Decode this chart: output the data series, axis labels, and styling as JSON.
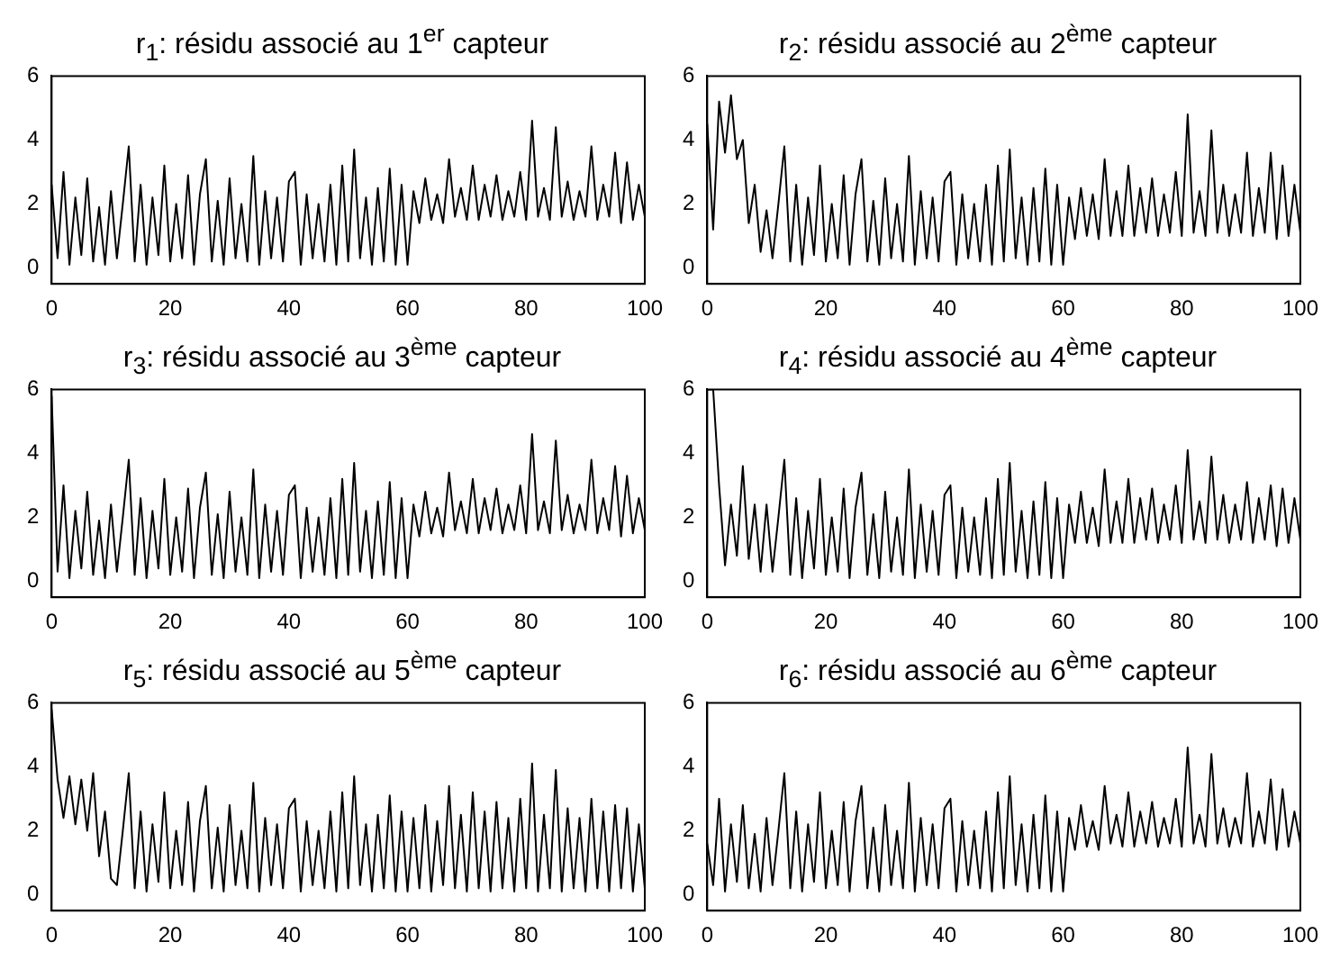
{
  "chart_data": [
    {
      "type": "line",
      "title": "r$_{1}$: résidu associé au 1$^{er}$ capteur",
      "color": "#000000",
      "xlim": [
        0,
        100
      ],
      "xticks": [
        0,
        20,
        40,
        60,
        80,
        100
      ],
      "ylim": [
        -0.5,
        6
      ],
      "yticks": [
        0,
        2,
        4,
        6
      ],
      "x": [
        0,
        1,
        2,
        3,
        4,
        5,
        6,
        7,
        8,
        9,
        10,
        11,
        12,
        13,
        14,
        15,
        16,
        17,
        18,
        19,
        20,
        21,
        22,
        23,
        24,
        25,
        26,
        27,
        28,
        29,
        30,
        31,
        32,
        33,
        34,
        35,
        36,
        37,
        38,
        39,
        40,
        41,
        42,
        43,
        44,
        45,
        46,
        47,
        48,
        49,
        50,
        51,
        52,
        53,
        54,
        55,
        56,
        57,
        58,
        59,
        60,
        61,
        62,
        63,
        64,
        65,
        66,
        67,
        68,
        69,
        70,
        71,
        72,
        73,
        74,
        75,
        76,
        77,
        78,
        79,
        80,
        81,
        82,
        83,
        84,
        85,
        86,
        87,
        88,
        89,
        90,
        91,
        92,
        93,
        94,
        95,
        96,
        97,
        98,
        99,
        100
      ],
      "values": [
        2.6,
        0.3,
        3.0,
        0.1,
        2.2,
        0.4,
        2.8,
        0.2,
        1.9,
        0.1,
        2.4,
        0.3,
        2.0,
        3.8,
        0.2,
        2.6,
        0.1,
        2.2,
        0.4,
        3.2,
        0.2,
        2.0,
        0.3,
        2.9,
        0.1,
        2.3,
        3.4,
        0.2,
        2.1,
        0.1,
        2.8,
        0.3,
        2.0,
        0.2,
        3.5,
        0.1,
        2.4,
        0.3,
        2.2,
        0.2,
        2.7,
        3.0,
        0.1,
        2.3,
        0.3,
        2.0,
        0.2,
        2.6,
        0.1,
        3.2,
        0.2,
        3.7,
        0.3,
        2.2,
        0.1,
        2.5,
        0.2,
        3.1,
        0.1,
        2.6,
        0.1,
        2.4,
        1.4,
        2.8,
        1.5,
        2.3,
        1.4,
        3.4,
        1.6,
        2.5,
        1.5,
        3.2,
        1.5,
        2.6,
        1.6,
        2.9,
        1.5,
        2.4,
        1.6,
        3.0,
        1.5,
        4.6,
        1.6,
        2.5,
        1.5,
        4.4,
        1.6,
        2.7,
        1.5,
        2.4,
        1.6,
        3.8,
        1.5,
        2.6,
        1.6,
        3.6,
        1.4,
        3.3,
        1.5,
        2.6,
        1.6
      ]
    },
    {
      "type": "line",
      "title": "r$_{2}$: résidu associé au 2$^{ème}$ capteur",
      "color": "#000000",
      "xlim": [
        0,
        100
      ],
      "xticks": [
        0,
        20,
        40,
        60,
        80,
        100
      ],
      "ylim": [
        -0.5,
        6
      ],
      "yticks": [
        0,
        2,
        4,
        6
      ],
      "x": [
        0,
        1,
        2,
        3,
        4,
        5,
        6,
        7,
        8,
        9,
        10,
        11,
        12,
        13,
        14,
        15,
        16,
        17,
        18,
        19,
        20,
        21,
        22,
        23,
        24,
        25,
        26,
        27,
        28,
        29,
        30,
        31,
        32,
        33,
        34,
        35,
        36,
        37,
        38,
        39,
        40,
        41,
        42,
        43,
        44,
        45,
        46,
        47,
        48,
        49,
        50,
        51,
        52,
        53,
        54,
        55,
        56,
        57,
        58,
        59,
        60,
        61,
        62,
        63,
        64,
        65,
        66,
        67,
        68,
        69,
        70,
        71,
        72,
        73,
        74,
        75,
        76,
        77,
        78,
        79,
        80,
        81,
        82,
        83,
        84,
        85,
        86,
        87,
        88,
        89,
        90,
        91,
        92,
        93,
        94,
        95,
        96,
        97,
        98,
        99,
        100
      ],
      "values": [
        4.5,
        1.2,
        5.2,
        3.6,
        5.4,
        3.4,
        4.0,
        1.4,
        2.6,
        0.5,
        1.8,
        0.3,
        2.0,
        3.8,
        0.2,
        2.6,
        0.1,
        2.2,
        0.4,
        3.2,
        0.2,
        2.0,
        0.3,
        2.9,
        0.1,
        2.3,
        3.4,
        0.2,
        2.1,
        0.1,
        2.8,
        0.3,
        2.0,
        0.2,
        3.5,
        0.1,
        2.4,
        0.3,
        2.2,
        0.2,
        2.7,
        3.0,
        0.1,
        2.3,
        0.3,
        2.0,
        0.2,
        2.6,
        0.1,
        3.2,
        0.2,
        3.7,
        0.3,
        2.2,
        0.1,
        2.5,
        0.2,
        3.1,
        0.1,
        2.6,
        0.1,
        2.2,
        0.9,
        2.5,
        1.0,
        2.3,
        0.9,
        3.4,
        1.0,
        2.4,
        1.0,
        3.2,
        1.0,
        2.5,
        1.1,
        2.8,
        1.0,
        2.3,
        1.1,
        3.0,
        1.0,
        4.8,
        1.1,
        2.4,
        1.0,
        4.3,
        1.1,
        2.6,
        1.0,
        2.3,
        1.1,
        3.6,
        1.0,
        2.5,
        1.1,
        3.6,
        0.9,
        3.2,
        1.0,
        2.6,
        1.1
      ]
    },
    {
      "type": "line",
      "title": "r$_{3}$: résidu associé au 3$^{ème}$ capteur",
      "color": "#000000",
      "xlim": [
        0,
        100
      ],
      "xticks": [
        0,
        20,
        40,
        60,
        80,
        100
      ],
      "ylim": [
        -0.5,
        6
      ],
      "yticks": [
        0,
        2,
        4,
        6
      ],
      "x": [
        0,
        1,
        2,
        3,
        4,
        5,
        6,
        7,
        8,
        9,
        10,
        11,
        12,
        13,
        14,
        15,
        16,
        17,
        18,
        19,
        20,
        21,
        22,
        23,
        24,
        25,
        26,
        27,
        28,
        29,
        30,
        31,
        32,
        33,
        34,
        35,
        36,
        37,
        38,
        39,
        40,
        41,
        42,
        43,
        44,
        45,
        46,
        47,
        48,
        49,
        50,
        51,
        52,
        53,
        54,
        55,
        56,
        57,
        58,
        59,
        60,
        61,
        62,
        63,
        64,
        65,
        66,
        67,
        68,
        69,
        70,
        71,
        72,
        73,
        74,
        75,
        76,
        77,
        78,
        79,
        80,
        81,
        82,
        83,
        84,
        85,
        86,
        87,
        88,
        89,
        90,
        91,
        92,
        93,
        94,
        95,
        96,
        97,
        98,
        99,
        100
      ],
      "values": [
        5.8,
        0.3,
        3.0,
        0.1,
        2.2,
        0.4,
        2.8,
        0.2,
        1.9,
        0.1,
        2.4,
        0.3,
        2.0,
        3.8,
        0.2,
        2.6,
        0.1,
        2.2,
        0.4,
        3.2,
        0.2,
        2.0,
        0.3,
        2.9,
        0.1,
        2.3,
        3.4,
        0.2,
        2.1,
        0.1,
        2.8,
        0.3,
        2.0,
        0.2,
        3.5,
        0.1,
        2.4,
        0.3,
        2.2,
        0.2,
        2.7,
        3.0,
        0.1,
        2.3,
        0.3,
        2.0,
        0.2,
        2.6,
        0.1,
        3.2,
        0.2,
        3.7,
        0.3,
        2.2,
        0.1,
        2.5,
        0.2,
        3.1,
        0.1,
        2.6,
        0.1,
        2.4,
        1.4,
        2.8,
        1.5,
        2.3,
        1.4,
        3.4,
        1.6,
        2.5,
        1.5,
        3.2,
        1.5,
        2.6,
        1.6,
        2.9,
        1.5,
        2.4,
        1.6,
        3.0,
        1.5,
        4.6,
        1.6,
        2.5,
        1.5,
        4.4,
        1.6,
        2.7,
        1.5,
        2.4,
        1.6,
        3.8,
        1.5,
        2.6,
        1.6,
        3.6,
        1.4,
        3.3,
        1.5,
        2.6,
        1.6
      ]
    },
    {
      "type": "line",
      "title": "r$_{4}$: résidu associé au 4$^{ème}$ capteur",
      "color": "#000000",
      "xlim": [
        0,
        100
      ],
      "xticks": [
        0,
        20,
        40,
        60,
        80,
        100
      ],
      "ylim": [
        -0.5,
        6
      ],
      "yticks": [
        0,
        2,
        4,
        6
      ],
      "x": [
        0,
        1,
        2,
        3,
        4,
        5,
        6,
        7,
        8,
        9,
        10,
        11,
        12,
        13,
        14,
        15,
        16,
        17,
        18,
        19,
        20,
        21,
        22,
        23,
        24,
        25,
        26,
        27,
        28,
        29,
        30,
        31,
        32,
        33,
        34,
        35,
        36,
        37,
        38,
        39,
        40,
        41,
        42,
        43,
        44,
        45,
        46,
        47,
        48,
        49,
        50,
        51,
        52,
        53,
        54,
        55,
        56,
        57,
        58,
        59,
        60,
        61,
        62,
        63,
        64,
        65,
        66,
        67,
        68,
        69,
        70,
        71,
        72,
        73,
        74,
        75,
        76,
        77,
        78,
        79,
        80,
        81,
        82,
        83,
        84,
        85,
        86,
        87,
        88,
        89,
        90,
        91,
        92,
        93,
        94,
        95,
        96,
        97,
        98,
        99,
        100
      ],
      "values": [
        6.0,
        6.0,
        3.0,
        0.5,
        2.4,
        0.8,
        3.6,
        0.7,
        2.4,
        0.3,
        2.4,
        0.3,
        2.0,
        3.8,
        0.2,
        2.6,
        0.1,
        2.2,
        0.4,
        3.2,
        0.2,
        2.0,
        0.3,
        2.9,
        0.1,
        2.3,
        3.4,
        0.2,
        2.1,
        0.1,
        2.8,
        0.3,
        2.0,
        0.2,
        3.5,
        0.1,
        2.4,
        0.3,
        2.2,
        0.2,
        2.7,
        3.0,
        0.1,
        2.3,
        0.3,
        2.0,
        0.2,
        2.6,
        0.1,
        3.2,
        0.2,
        3.7,
        0.3,
        2.2,
        0.1,
        2.5,
        0.2,
        3.1,
        0.1,
        2.6,
        0.1,
        2.4,
        1.2,
        2.8,
        1.2,
        2.3,
        1.1,
        3.5,
        1.2,
        2.5,
        1.2,
        3.2,
        1.2,
        2.6,
        1.3,
        2.9,
        1.2,
        2.4,
        1.3,
        3.0,
        1.2,
        4.1,
        1.3,
        2.5,
        1.2,
        3.9,
        1.3,
        2.7,
        1.2,
        2.4,
        1.3,
        3.1,
        1.2,
        2.6,
        1.3,
        3.0,
        1.1,
        2.9,
        1.2,
        2.6,
        1.3
      ]
    },
    {
      "type": "line",
      "title": "r$_{5}$: résidu associé au 5$^{ème}$ capteur",
      "color": "#000000",
      "xlim": [
        0,
        100
      ],
      "xticks": [
        0,
        20,
        40,
        60,
        80,
        100
      ],
      "ylim": [
        -0.5,
        6
      ],
      "yticks": [
        0,
        2,
        4,
        6
      ],
      "x": [
        0,
        1,
        2,
        3,
        4,
        5,
        6,
        7,
        8,
        9,
        10,
        11,
        12,
        13,
        14,
        15,
        16,
        17,
        18,
        19,
        20,
        21,
        22,
        23,
        24,
        25,
        26,
        27,
        28,
        29,
        30,
        31,
        32,
        33,
        34,
        35,
        36,
        37,
        38,
        39,
        40,
        41,
        42,
        43,
        44,
        45,
        46,
        47,
        48,
        49,
        50,
        51,
        52,
        53,
        54,
        55,
        56,
        57,
        58,
        59,
        60,
        61,
        62,
        63,
        64,
        65,
        66,
        67,
        68,
        69,
        70,
        71,
        72,
        73,
        74,
        75,
        76,
        77,
        78,
        79,
        80,
        81,
        82,
        83,
        84,
        85,
        86,
        87,
        88,
        89,
        90,
        91,
        92,
        93,
        94,
        95,
        96,
        97,
        98,
        99,
        100
      ],
      "values": [
        5.8,
        3.6,
        2.4,
        3.7,
        2.2,
        3.6,
        2.0,
        3.8,
        1.2,
        2.6,
        0.5,
        0.3,
        2.0,
        3.8,
        0.2,
        2.6,
        0.1,
        2.2,
        0.4,
        3.2,
        0.2,
        2.0,
        0.3,
        2.9,
        0.1,
        2.3,
        3.4,
        0.2,
        2.1,
        0.1,
        2.8,
        0.3,
        2.0,
        0.2,
        3.5,
        0.1,
        2.4,
        0.3,
        2.2,
        0.2,
        2.7,
        3.0,
        0.1,
        2.3,
        0.3,
        2.0,
        0.2,
        2.6,
        0.1,
        3.2,
        0.2,
        3.7,
        0.3,
        2.2,
        0.1,
        2.5,
        0.2,
        3.1,
        0.1,
        2.6,
        0.1,
        2.4,
        0.2,
        2.8,
        0.1,
        2.3,
        0.3,
        3.4,
        0.2,
        2.5,
        0.1,
        3.2,
        0.2,
        2.6,
        0.1,
        2.9,
        0.2,
        2.4,
        0.1,
        3.0,
        0.2,
        4.1,
        0.1,
        2.5,
        0.2,
        3.9,
        0.1,
        2.7,
        0.2,
        2.4,
        0.1,
        3.0,
        0.2,
        2.6,
        0.1,
        2.8,
        0.2,
        2.7,
        0.1,
        2.2,
        0.2
      ]
    },
    {
      "type": "line",
      "title": "r$_{6}$: résidu associé au 6$^{ème}$ capteur",
      "color": "#000000",
      "xlim": [
        0,
        100
      ],
      "xticks": [
        0,
        20,
        40,
        60,
        80,
        100
      ],
      "ylim": [
        -0.5,
        6
      ],
      "yticks": [
        0,
        2,
        4,
        6
      ],
      "x": [
        0,
        1,
        2,
        3,
        4,
        5,
        6,
        7,
        8,
        9,
        10,
        11,
        12,
        13,
        14,
        15,
        16,
        17,
        18,
        19,
        20,
        21,
        22,
        23,
        24,
        25,
        26,
        27,
        28,
        29,
        30,
        31,
        32,
        33,
        34,
        35,
        36,
        37,
        38,
        39,
        40,
        41,
        42,
        43,
        44,
        45,
        46,
        47,
        48,
        49,
        50,
        51,
        52,
        53,
        54,
        55,
        56,
        57,
        58,
        59,
        60,
        61,
        62,
        63,
        64,
        65,
        66,
        67,
        68,
        69,
        70,
        71,
        72,
        73,
        74,
        75,
        76,
        77,
        78,
        79,
        80,
        81,
        82,
        83,
        84,
        85,
        86,
        87,
        88,
        89,
        90,
        91,
        92,
        93,
        94,
        95,
        96,
        97,
        98,
        99,
        100
      ],
      "values": [
        1.6,
        0.3,
        3.0,
        0.1,
        2.2,
        0.4,
        2.8,
        0.2,
        1.9,
        0.1,
        2.4,
        0.3,
        2.0,
        3.8,
        0.2,
        2.6,
        0.1,
        2.2,
        0.4,
        3.2,
        0.2,
        2.0,
        0.3,
        2.9,
        0.1,
        2.3,
        3.4,
        0.2,
        2.1,
        0.1,
        2.8,
        0.3,
        2.0,
        0.2,
        3.5,
        0.1,
        2.4,
        0.3,
        2.2,
        0.2,
        2.7,
        3.0,
        0.1,
        2.3,
        0.3,
        2.0,
        0.2,
        2.6,
        0.1,
        3.2,
        0.2,
        3.7,
        0.3,
        2.2,
        0.1,
        2.5,
        0.2,
        3.1,
        0.1,
        2.6,
        0.1,
        2.4,
        1.4,
        2.8,
        1.5,
        2.3,
        1.4,
        3.4,
        1.6,
        2.5,
        1.5,
        3.2,
        1.5,
        2.6,
        1.6,
        2.9,
        1.5,
        2.4,
        1.6,
        3.0,
        1.5,
        4.6,
        1.6,
        2.5,
        1.5,
        4.4,
        1.6,
        2.7,
        1.5,
        2.4,
        1.6,
        3.8,
        1.5,
        2.6,
        1.6,
        3.6,
        1.4,
        3.3,
        1.5,
        2.6,
        1.6
      ]
    }
  ]
}
